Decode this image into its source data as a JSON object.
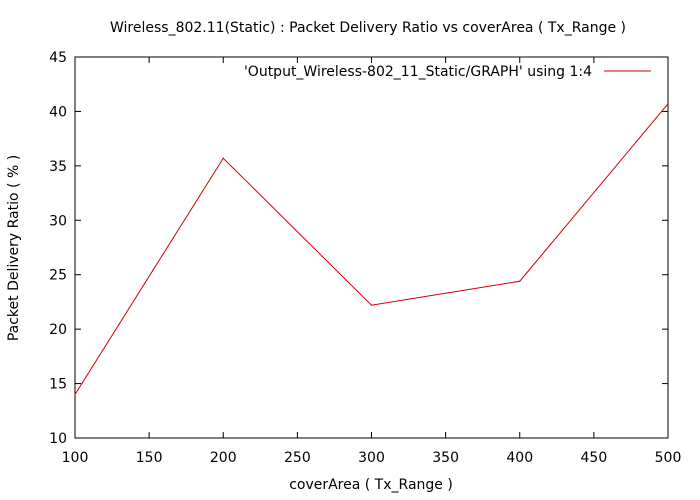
{
  "chart_data": {
    "type": "line",
    "title": "Wireless_802.11(Static) : Packet Delivery Ratio vs coverArea ( Tx_Range )",
    "xlabel": "coverArea ( Tx_Range )",
    "ylabel": "Packet Delivery Ratio ( % )",
    "xlim": [
      100,
      500
    ],
    "ylim": [
      10,
      45
    ],
    "xticks": [
      100,
      150,
      200,
      250,
      300,
      350,
      400,
      450,
      500
    ],
    "yticks": [
      10,
      15,
      20,
      25,
      30,
      35,
      40,
      45
    ],
    "grid": false,
    "legend_position": "top-right",
    "series": [
      {
        "name": "'Output_Wireless-802_11_Static/GRAPH' using 1:4",
        "color": "#cc0000",
        "x": [
          100,
          200,
          300,
          400,
          500
        ],
        "y": [
          14.0,
          35.7,
          22.2,
          24.4,
          40.7
        ]
      }
    ]
  }
}
